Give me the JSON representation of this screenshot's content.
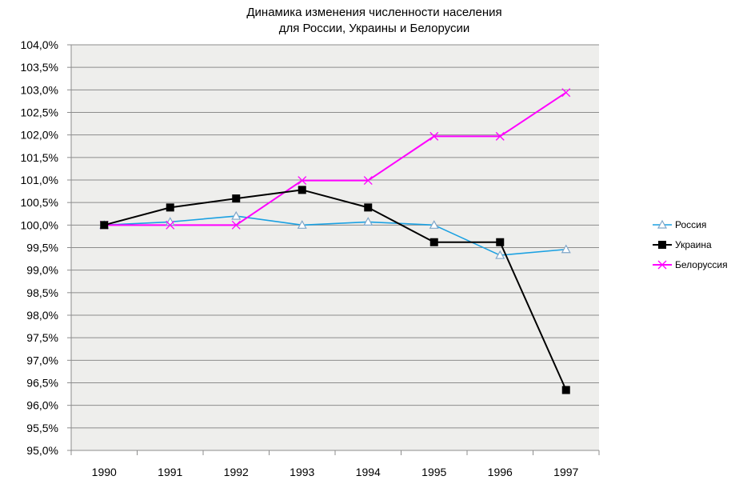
{
  "chart_data": {
    "type": "line",
    "title_lines": [
      "Динамика изменения  численности населения",
      "для России, Украины и Белорусии"
    ],
    "xlabel": "",
    "ylabel": "",
    "categories": [
      "1990",
      "1991",
      "1992",
      "1993",
      "1994",
      "1995",
      "1996",
      "1997"
    ],
    "ylim": [
      95.0,
      104.0
    ],
    "y_ticks": [
      "95,0%",
      "95,5%",
      "96,0%",
      "96,5%",
      "97,0%",
      "97,5%",
      "98,0%",
      "98,5%",
      "99,0%",
      "99,5%",
      "100,0%",
      "100,5%",
      "101,0%",
      "101,5%",
      "102,0%",
      "102,5%",
      "103,0%",
      "103,5%",
      "104,0%"
    ],
    "y_tick_values": [
      95.0,
      95.5,
      96.0,
      96.5,
      97.0,
      97.5,
      98.0,
      98.5,
      99.0,
      99.5,
      100.0,
      100.5,
      101.0,
      101.5,
      102.0,
      102.5,
      103.0,
      103.5,
      104.0
    ],
    "grid": true,
    "legend_position": "right",
    "plot_background": "#eeeeec",
    "series": [
      {
        "name": "Россия",
        "color": "#1ba1e2",
        "marker": "triangle",
        "values": [
          100.0,
          100.07,
          100.2,
          100.0,
          100.07,
          100.0,
          99.33,
          99.46
        ]
      },
      {
        "name": "Украина",
        "color": "#000000",
        "marker": "square",
        "values": [
          100.0,
          100.39,
          100.59,
          100.78,
          100.39,
          99.62,
          99.62,
          96.34
        ]
      },
      {
        "name": "Белоруссия",
        "color": "#ff00ff",
        "marker": "x",
        "values": [
          100.0,
          100.0,
          100.0,
          100.99,
          100.99,
          101.97,
          101.97,
          102.94
        ]
      }
    ]
  }
}
